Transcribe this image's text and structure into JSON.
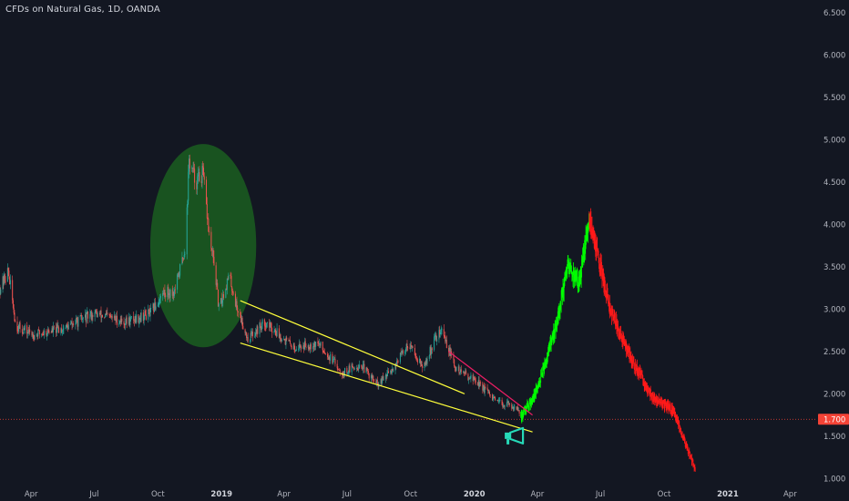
{
  "title": "CFDs on Natural Gas, 1D, OANDA",
  "colors": {
    "background": "#131722",
    "candle_up": "#26a69a",
    "candle_down": "#ef5350",
    "projection_up": "#00ff00",
    "projection_down": "#ff1a1a",
    "channel": "#ffff3b",
    "trendline": "#e91e63",
    "highlight_ellipse": "#1b5e20",
    "level_line": "#f44336",
    "icon": "#26d9b8"
  },
  "chart_data": {
    "type": "candlestick",
    "x_axis": {
      "range": [
        "2018-02-15",
        "2021-05-10"
      ],
      "tick_labels": [
        {
          "date": "2018-04-01",
          "label": "Apr"
        },
        {
          "date": "2018-07-01",
          "label": "Jul"
        },
        {
          "date": "2018-10-01",
          "label": "Oct"
        },
        {
          "date": "2019-01-01",
          "label": "2019",
          "major": true
        },
        {
          "date": "2019-04-01",
          "label": "Apr"
        },
        {
          "date": "2019-07-01",
          "label": "Jul"
        },
        {
          "date": "2019-10-01",
          "label": "Oct"
        },
        {
          "date": "2020-01-01",
          "label": "2020",
          "major": true
        },
        {
          "date": "2020-04-01",
          "label": "Apr"
        },
        {
          "date": "2020-07-01",
          "label": "Jul"
        },
        {
          "date": "2020-10-01",
          "label": "Oct"
        },
        {
          "date": "2021-01-01",
          "label": "2021",
          "major": true
        },
        {
          "date": "2021-04-01",
          "label": "Apr"
        }
      ]
    },
    "y_axis": {
      "range": [
        0.95,
        6.65
      ],
      "tick_labels": [
        "1.000",
        "1.500",
        "2.000",
        "2.500",
        "3.000",
        "3.500",
        "4.000",
        "4.500",
        "5.000",
        "5.500",
        "6.000",
        "6.500"
      ]
    },
    "price_path": [
      {
        "date": "2018-02-15",
        "price": 3.25
      },
      {
        "date": "2018-02-27",
        "price": 3.45
      },
      {
        "date": "2018-03-10",
        "price": 2.8
      },
      {
        "date": "2018-04-05",
        "price": 2.7
      },
      {
        "date": "2018-05-20",
        "price": 2.78
      },
      {
        "date": "2018-07-01",
        "price": 2.95
      },
      {
        "date": "2018-08-15",
        "price": 2.85
      },
      {
        "date": "2018-09-20",
        "price": 2.95
      },
      {
        "date": "2018-10-10",
        "price": 3.2
      },
      {
        "date": "2018-10-25",
        "price": 3.2
      },
      {
        "date": "2018-11-10",
        "price": 3.75
      },
      {
        "date": "2018-11-15",
        "price": 4.75
      },
      {
        "date": "2018-11-25",
        "price": 4.5
      },
      {
        "date": "2018-12-05",
        "price": 4.6
      },
      {
        "date": "2018-12-15",
        "price": 3.8
      },
      {
        "date": "2018-12-22",
        "price": 3.5
      },
      {
        "date": "2018-12-28",
        "price": 3.0
      },
      {
        "date": "2019-01-12",
        "price": 3.4
      },
      {
        "date": "2019-01-22",
        "price": 3.05
      },
      {
        "date": "2019-02-08",
        "price": 2.65
      },
      {
        "date": "2019-03-05",
        "price": 2.85
      },
      {
        "date": "2019-03-25",
        "price": 2.7
      },
      {
        "date": "2019-04-15",
        "price": 2.55
      },
      {
        "date": "2019-05-20",
        "price": 2.6
      },
      {
        "date": "2019-06-25",
        "price": 2.25
      },
      {
        "date": "2019-07-20",
        "price": 2.35
      },
      {
        "date": "2019-08-15",
        "price": 2.1
      },
      {
        "date": "2019-09-05",
        "price": 2.3
      },
      {
        "date": "2019-09-28",
        "price": 2.6
      },
      {
        "date": "2019-10-20",
        "price": 2.3
      },
      {
        "date": "2019-11-05",
        "price": 2.65
      },
      {
        "date": "2019-11-15",
        "price": 2.75
      },
      {
        "date": "2019-12-05",
        "price": 2.3
      },
      {
        "date": "2020-01-05",
        "price": 2.15
      },
      {
        "date": "2020-02-01",
        "price": 1.9
      },
      {
        "date": "2020-03-01",
        "price": 1.85
      },
      {
        "date": "2020-03-08",
        "price": 1.72
      }
    ],
    "projection_up": [
      {
        "date": "2020-03-08",
        "price": 1.72
      },
      {
        "date": "2020-04-01",
        "price": 2.05
      },
      {
        "date": "2020-05-01",
        "price": 2.9
      },
      {
        "date": "2020-05-15",
        "price": 3.5
      },
      {
        "date": "2020-06-01",
        "price": 3.3
      },
      {
        "date": "2020-06-15",
        "price": 4.1
      }
    ],
    "projection_down": [
      {
        "date": "2020-06-15",
        "price": 4.1
      },
      {
        "date": "2020-07-15",
        "price": 3.0
      },
      {
        "date": "2020-08-15",
        "price": 2.4
      },
      {
        "date": "2020-09-15",
        "price": 1.95
      },
      {
        "date": "2020-10-15",
        "price": 1.8
      },
      {
        "date": "2020-11-15",
        "price": 1.1
      }
    ],
    "channel": {
      "upper": [
        {
          "date": "2019-01-28",
          "price": 3.1
        },
        {
          "date": "2019-12-18",
          "price": 2.0
        }
      ],
      "lower": [
        {
          "date": "2019-01-28",
          "price": 2.6
        },
        {
          "date": "2020-03-25",
          "price": 1.55
        }
      ]
    },
    "trendline": [
      {
        "date": "2019-11-25",
        "price": 2.5
      },
      {
        "date": "2020-03-25",
        "price": 1.75
      }
    ],
    "highlight_ellipse": {
      "from_date": "2018-09-20",
      "to_date": "2019-02-20",
      "price_low": 2.55,
      "price_high": 4.95
    },
    "horizontal_level": 1.7,
    "price_tag_label": "1.700"
  },
  "icon": "megaphone-icon"
}
